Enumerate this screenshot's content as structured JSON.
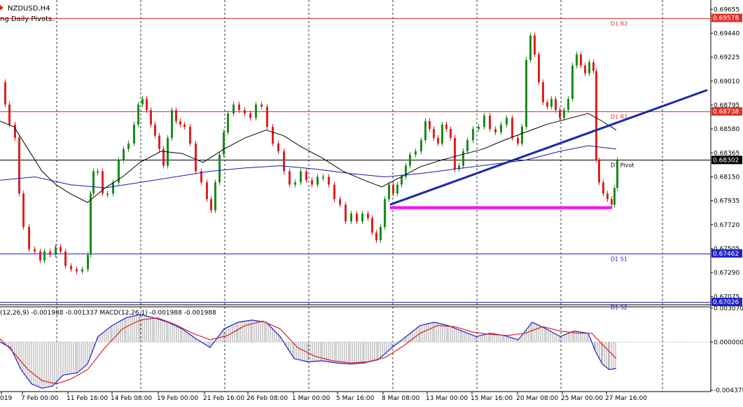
{
  "window": {
    "symbol_title": "NZDUSD,H4",
    "indicator_label": "ng Daily Pivots."
  },
  "colors": {
    "background": "#ffffff",
    "bull_candle": "#1a8c1a",
    "bear_candle": "#e02020",
    "pivot_resistance": "#e0302a",
    "pivot_support": "#1f24c8",
    "pivot_level": "#000000",
    "ma_fast": "#000000",
    "ma_slow": "#1a1aa8",
    "trendline": "#1a2aa8",
    "support_zone": "#ff00ff",
    "macd_main": "#1a22cc",
    "macd_signal": "#e02020",
    "macd_hist": "#a0a0a0",
    "grid": "#000000"
  },
  "chart_data": [
    {
      "type": "line",
      "title": "NZDUSD,H4",
      "subtitle": "ng Daily Pivots.",
      "price_axis": {
        "ticks": [
          "0.69655",
          "0.69440",
          "0.69225",
          "0.69010",
          "0.68795",
          "0.68580",
          "0.68365",
          "0.68150",
          "0.67935",
          "0.67720",
          "0.67505",
          "0.67290",
          "0.67075"
        ],
        "range": [
          0.6702,
          0.6972
        ]
      },
      "time_axis": {
        "labels": [
          "019",
          "7 Feb 00:00",
          "11 Feb 16:00",
          "14 Feb 08:00",
          "19 Feb 00:00",
          "21 Feb 16:00",
          "26 Feb 08:00",
          "1 Mar 00:00",
          "5 Mar 16:00",
          "8 Mar 08:00",
          "13 Mar 00:00",
          "15 Mar 16:00",
          "20 Mar 08:00",
          "25 Mar 00:00",
          "27 Mar 16:00"
        ]
      },
      "grid": "vertical-dashed",
      "pivot_levels": [
        {
          "name": "D1 R2",
          "value": 0.69578,
          "price_label": "0.69578"
        },
        {
          "name": "D1 R1",
          "value": 0.68738,
          "price_label": "0.68738"
        },
        {
          "name": "D1 Pivot",
          "value": 0.68302,
          "price_label": "0.68302"
        },
        {
          "name": "D1 S1",
          "value": 0.67462,
          "price_label": "0.67462"
        },
        {
          "name": "D1 S2",
          "value": 0.67026,
          "price_label": "0.67026"
        }
      ],
      "price_path": [
        {
          "x": 0,
          "y": 0.69
        },
        {
          "x": 6,
          "y": 0.688
        },
        {
          "x": 12,
          "y": 0.6862
        },
        {
          "x": 20,
          "y": 0.685
        },
        {
          "x": 26,
          "y": 0.68
        },
        {
          "x": 32,
          "y": 0.677
        },
        {
          "x": 40,
          "y": 0.675
        },
        {
          "x": 48,
          "y": 0.6748
        },
        {
          "x": 56,
          "y": 0.674
        },
        {
          "x": 62,
          "y": 0.6748
        },
        {
          "x": 70,
          "y": 0.6745
        },
        {
          "x": 78,
          "y": 0.6752
        },
        {
          "x": 85,
          "y": 0.6748
        },
        {
          "x": 92,
          "y": 0.6735
        },
        {
          "x": 100,
          "y": 0.6732
        },
        {
          "x": 108,
          "y": 0.673
        },
        {
          "x": 116,
          "y": 0.6732
        },
        {
          "x": 124,
          "y": 0.6745
        },
        {
          "x": 128,
          "y": 0.68
        },
        {
          "x": 132,
          "y": 0.682
        },
        {
          "x": 138,
          "y": 0.682
        },
        {
          "x": 145,
          "y": 0.68
        },
        {
          "x": 152,
          "y": 0.68
        },
        {
          "x": 160,
          "y": 0.681
        },
        {
          "x": 168,
          "y": 0.683
        },
        {
          "x": 175,
          "y": 0.684
        },
        {
          "x": 182,
          "y": 0.6845
        },
        {
          "x": 190,
          "y": 0.6862
        },
        {
          "x": 196,
          "y": 0.688
        },
        {
          "x": 202,
          "y": 0.6885
        },
        {
          "x": 208,
          "y": 0.6875
        },
        {
          "x": 214,
          "y": 0.6862
        },
        {
          "x": 220,
          "y": 0.6852
        },
        {
          "x": 226,
          "y": 0.684
        },
        {
          "x": 232,
          "y": 0.6825
        },
        {
          "x": 238,
          "y": 0.685
        },
        {
          "x": 244,
          "y": 0.6875
        },
        {
          "x": 250,
          "y": 0.6865
        },
        {
          "x": 256,
          "y": 0.6862
        },
        {
          "x": 262,
          "y": 0.686
        },
        {
          "x": 270,
          "y": 0.6845
        },
        {
          "x": 278,
          "y": 0.682
        },
        {
          "x": 286,
          "y": 0.681
        },
        {
          "x": 294,
          "y": 0.6795
        },
        {
          "x": 300,
          "y": 0.6785
        },
        {
          "x": 306,
          "y": 0.681
        },
        {
          "x": 312,
          "y": 0.6835
        },
        {
          "x": 318,
          "y": 0.6855
        },
        {
          "x": 324,
          "y": 0.6872
        },
        {
          "x": 332,
          "y": 0.688
        },
        {
          "x": 340,
          "y": 0.6875
        },
        {
          "x": 348,
          "y": 0.6872
        },
        {
          "x": 356,
          "y": 0.6868
        },
        {
          "x": 364,
          "y": 0.688
        },
        {
          "x": 372,
          "y": 0.6878
        },
        {
          "x": 380,
          "y": 0.686
        },
        {
          "x": 388,
          "y": 0.6845
        },
        {
          "x": 396,
          "y": 0.6838
        },
        {
          "x": 404,
          "y": 0.682
        },
        {
          "x": 412,
          "y": 0.6808
        },
        {
          "x": 420,
          "y": 0.681
        },
        {
          "x": 428,
          "y": 0.682
        },
        {
          "x": 436,
          "y": 0.6812
        },
        {
          "x": 444,
          "y": 0.6808
        },
        {
          "x": 452,
          "y": 0.6815
        },
        {
          "x": 460,
          "y": 0.6815
        },
        {
          "x": 468,
          "y": 0.6808
        },
        {
          "x": 476,
          "y": 0.6795
        },
        {
          "x": 484,
          "y": 0.679
        },
        {
          "x": 492,
          "y": 0.6775
        },
        {
          "x": 500,
          "y": 0.6782
        },
        {
          "x": 508,
          "y": 0.6775
        },
        {
          "x": 516,
          "y": 0.6782
        },
        {
          "x": 524,
          "y": 0.6778
        },
        {
          "x": 530,
          "y": 0.6765
        },
        {
          "x": 536,
          "y": 0.6758
        },
        {
          "x": 542,
          "y": 0.677
        },
        {
          "x": 548,
          "y": 0.6795
        },
        {
          "x": 554,
          "y": 0.6808
        },
        {
          "x": 560,
          "y": 0.68
        },
        {
          "x": 566,
          "y": 0.6808
        },
        {
          "x": 572,
          "y": 0.6815
        },
        {
          "x": 578,
          "y": 0.6825
        },
        {
          "x": 584,
          "y": 0.6835
        },
        {
          "x": 592,
          "y": 0.6838
        },
        {
          "x": 600,
          "y": 0.6848
        },
        {
          "x": 606,
          "y": 0.6865
        },
        {
          "x": 612,
          "y": 0.6858
        },
        {
          "x": 618,
          "y": 0.685
        },
        {
          "x": 624,
          "y": 0.6845
        },
        {
          "x": 630,
          "y": 0.6862
        },
        {
          "x": 636,
          "y": 0.6858
        },
        {
          "x": 642,
          "y": 0.685
        },
        {
          "x": 648,
          "y": 0.6822
        },
        {
          "x": 654,
          "y": 0.6825
        },
        {
          "x": 660,
          "y": 0.6838
        },
        {
          "x": 666,
          "y": 0.6848
        },
        {
          "x": 674,
          "y": 0.6858
        },
        {
          "x": 682,
          "y": 0.686
        },
        {
          "x": 690,
          "y": 0.687
        },
        {
          "x": 698,
          "y": 0.6858
        },
        {
          "x": 706,
          "y": 0.6855
        },
        {
          "x": 714,
          "y": 0.6862
        },
        {
          "x": 722,
          "y": 0.6868
        },
        {
          "x": 730,
          "y": 0.685
        },
        {
          "x": 738,
          "y": 0.6845
        },
        {
          "x": 744,
          "y": 0.686
        },
        {
          "x": 750,
          "y": 0.692
        },
        {
          "x": 756,
          "y": 0.6942
        },
        {
          "x": 762,
          "y": 0.6925
        },
        {
          "x": 768,
          "y": 0.69
        },
        {
          "x": 774,
          "y": 0.6882
        },
        {
          "x": 780,
          "y": 0.6878
        },
        {
          "x": 786,
          "y": 0.6885
        },
        {
          "x": 792,
          "y": 0.6875
        },
        {
          "x": 798,
          "y": 0.6868
        },
        {
          "x": 804,
          "y": 0.6875
        },
        {
          "x": 810,
          "y": 0.6885
        },
        {
          "x": 816,
          "y": 0.6915
        },
        {
          "x": 822,
          "y": 0.6925
        },
        {
          "x": 828,
          "y": 0.6915
        },
        {
          "x": 834,
          "y": 0.6908
        },
        {
          "x": 840,
          "y": 0.6918
        },
        {
          "x": 846,
          "y": 0.691
        },
        {
          "x": 850,
          "y": 0.683
        },
        {
          "x": 854,
          "y": 0.681
        },
        {
          "x": 860,
          "y": 0.68
        },
        {
          "x": 866,
          "y": 0.6795
        },
        {
          "x": 872,
          "y": 0.679
        },
        {
          "x": 876,
          "y": 0.6805
        },
        {
          "x": 880,
          "y": 0.683
        }
      ],
      "ma_fast_path": [
        {
          "x": 0,
          "y": 0.6865
        },
        {
          "x": 20,
          "y": 0.686
        },
        {
          "x": 40,
          "y": 0.684
        },
        {
          "x": 60,
          "y": 0.682
        },
        {
          "x": 80,
          "y": 0.6808
        },
        {
          "x": 100,
          "y": 0.68
        },
        {
          "x": 125,
          "y": 0.6792
        },
        {
          "x": 150,
          "y": 0.6805
        },
        {
          "x": 175,
          "y": 0.6815
        },
        {
          "x": 200,
          "y": 0.6828
        },
        {
          "x": 230,
          "y": 0.6838
        },
        {
          "x": 260,
          "y": 0.6836
        },
        {
          "x": 290,
          "y": 0.6828
        },
        {
          "x": 320,
          "y": 0.684
        },
        {
          "x": 350,
          "y": 0.685
        },
        {
          "x": 380,
          "y": 0.6857
        },
        {
          "x": 405,
          "y": 0.6852
        },
        {
          "x": 430,
          "y": 0.6842
        },
        {
          "x": 460,
          "y": 0.6832
        },
        {
          "x": 490,
          "y": 0.682
        },
        {
          "x": 520,
          "y": 0.6812
        },
        {
          "x": 545,
          "y": 0.6806
        },
        {
          "x": 570,
          "y": 0.6814
        },
        {
          "x": 600,
          "y": 0.6824
        },
        {
          "x": 630,
          "y": 0.683
        },
        {
          "x": 660,
          "y": 0.6835
        },
        {
          "x": 690,
          "y": 0.684
        },
        {
          "x": 720,
          "y": 0.6848
        },
        {
          "x": 750,
          "y": 0.6855
        },
        {
          "x": 780,
          "y": 0.6862
        },
        {
          "x": 810,
          "y": 0.6867
        },
        {
          "x": 840,
          "y": 0.6872
        },
        {
          "x": 860,
          "y": 0.6865
        },
        {
          "x": 880,
          "y": 0.6857
        }
      ],
      "ma_slow_path": [
        {
          "x": 0,
          "y": 0.6812
        },
        {
          "x": 50,
          "y": 0.6815
        },
        {
          "x": 100,
          "y": 0.6808
        },
        {
          "x": 150,
          "y": 0.6805
        },
        {
          "x": 200,
          "y": 0.681
        },
        {
          "x": 250,
          "y": 0.6815
        },
        {
          "x": 300,
          "y": 0.682
        },
        {
          "x": 350,
          "y": 0.6823
        },
        {
          "x": 400,
          "y": 0.6825
        },
        {
          "x": 450,
          "y": 0.6822
        },
        {
          "x": 500,
          "y": 0.6818
        },
        {
          "x": 550,
          "y": 0.6815
        },
        {
          "x": 600,
          "y": 0.6818
        },
        {
          "x": 650,
          "y": 0.6822
        },
        {
          "x": 700,
          "y": 0.6826
        },
        {
          "x": 750,
          "y": 0.683
        },
        {
          "x": 800,
          "y": 0.6838
        },
        {
          "x": 840,
          "y": 0.6843
        },
        {
          "x": 880,
          "y": 0.684
        }
      ],
      "trendline": {
        "from": {
          "x": 557,
          "y": 0.679
        },
        "to": {
          "x": 1010,
          "y": 0.6893
        }
      },
      "support_zone": {
        "from": {
          "x": 557,
          "y": 0.67873
        },
        "to": {
          "x": 874,
          "y": 0.67873
        }
      }
    },
    {
      "type": "line",
      "title": "(12,26,9) -0.001988 -0.001337 MACD(12,26,1) -0.001988 -0.001988",
      "value_axis": {
        "ticks": [
          "0.003070",
          "0.000000",
          "-0.004378"
        ],
        "range": [
          -0.0045,
          0.0032
        ]
      },
      "zero_line": 0.0,
      "macd_main": [
        {
          "x": 0,
          "y": 0.0
        },
        {
          "x": 15,
          "y": -0.0005
        },
        {
          "x": 30,
          "y": -0.0025
        },
        {
          "x": 45,
          "y": -0.0038
        },
        {
          "x": 60,
          "y": -0.0042
        },
        {
          "x": 75,
          "y": -0.004
        },
        {
          "x": 90,
          "y": -0.003
        },
        {
          "x": 110,
          "y": -0.0028
        },
        {
          "x": 125,
          "y": -0.002
        },
        {
          "x": 140,
          "y": 0.0005
        },
        {
          "x": 160,
          "y": 0.0015
        },
        {
          "x": 180,
          "y": 0.0022
        },
        {
          "x": 200,
          "y": 0.0025
        },
        {
          "x": 220,
          "y": 0.0022
        },
        {
          "x": 240,
          "y": 0.0018
        },
        {
          "x": 260,
          "y": 0.0012
        },
        {
          "x": 280,
          "y": 0.0003
        },
        {
          "x": 300,
          "y": -0.0005
        },
        {
          "x": 320,
          "y": 0.0012
        },
        {
          "x": 340,
          "y": 0.0018
        },
        {
          "x": 360,
          "y": 0.002
        },
        {
          "x": 380,
          "y": 0.0018
        },
        {
          "x": 400,
          "y": 0.0005
        },
        {
          "x": 420,
          "y": -0.0015
        },
        {
          "x": 440,
          "y": -0.0018
        },
        {
          "x": 460,
          "y": -0.0017
        },
        {
          "x": 480,
          "y": -0.0019
        },
        {
          "x": 500,
          "y": -0.002
        },
        {
          "x": 520,
          "y": -0.0019
        },
        {
          "x": 540,
          "y": -0.0016
        },
        {
          "x": 560,
          "y": -0.0005
        },
        {
          "x": 580,
          "y": 0.0005
        },
        {
          "x": 600,
          "y": 0.0015
        },
        {
          "x": 620,
          "y": 0.0018
        },
        {
          "x": 640,
          "y": 0.0015
        },
        {
          "x": 660,
          "y": 0.001
        },
        {
          "x": 680,
          "y": 0.0005
        },
        {
          "x": 700,
          "y": 0.0008
        },
        {
          "x": 720,
          "y": 0.0006
        },
        {
          "x": 740,
          "y": 0.0002
        },
        {
          "x": 760,
          "y": 0.0018
        },
        {
          "x": 780,
          "y": 0.0012
        },
        {
          "x": 800,
          "y": 0.0005
        },
        {
          "x": 820,
          "y": 0.001
        },
        {
          "x": 840,
          "y": 0.0008
        },
        {
          "x": 850,
          "y": -0.0008
        },
        {
          "x": 860,
          "y": -0.002
        },
        {
          "x": 870,
          "y": -0.0025
        },
        {
          "x": 880,
          "y": -0.0024
        }
      ],
      "macd_signal": [
        {
          "x": 0,
          "y": 0.0003
        },
        {
          "x": 20,
          "y": -0.001
        },
        {
          "x": 40,
          "y": -0.0025
        },
        {
          "x": 60,
          "y": -0.0035
        },
        {
          "x": 80,
          "y": -0.0038
        },
        {
          "x": 100,
          "y": -0.0034
        },
        {
          "x": 125,
          "y": -0.0025
        },
        {
          "x": 150,
          "y": -0.0005
        },
        {
          "x": 175,
          "y": 0.0012
        },
        {
          "x": 200,
          "y": 0.002
        },
        {
          "x": 225,
          "y": 0.0022
        },
        {
          "x": 250,
          "y": 0.0016
        },
        {
          "x": 275,
          "y": 0.0008
        },
        {
          "x": 300,
          "y": 0.0002
        },
        {
          "x": 325,
          "y": 0.0006
        },
        {
          "x": 350,
          "y": 0.0015
        },
        {
          "x": 375,
          "y": 0.0019
        },
        {
          "x": 400,
          "y": 0.0012
        },
        {
          "x": 425,
          "y": -0.0005
        },
        {
          "x": 450,
          "y": -0.0013
        },
        {
          "x": 475,
          "y": -0.0017
        },
        {
          "x": 500,
          "y": -0.0019
        },
        {
          "x": 525,
          "y": -0.0018
        },
        {
          "x": 550,
          "y": -0.0014
        },
        {
          "x": 575,
          "y": -0.0004
        },
        {
          "x": 600,
          "y": 0.0008
        },
        {
          "x": 625,
          "y": 0.0015
        },
        {
          "x": 650,
          "y": 0.0014
        },
        {
          "x": 675,
          "y": 0.0009
        },
        {
          "x": 700,
          "y": 0.0007
        },
        {
          "x": 725,
          "y": 0.0006
        },
        {
          "x": 750,
          "y": 0.0008
        },
        {
          "x": 775,
          "y": 0.0014
        },
        {
          "x": 800,
          "y": 0.001
        },
        {
          "x": 825,
          "y": 0.0008
        },
        {
          "x": 845,
          "y": 0.0008
        },
        {
          "x": 860,
          "y": -0.0002
        },
        {
          "x": 880,
          "y": -0.0015
        }
      ]
    }
  ]
}
